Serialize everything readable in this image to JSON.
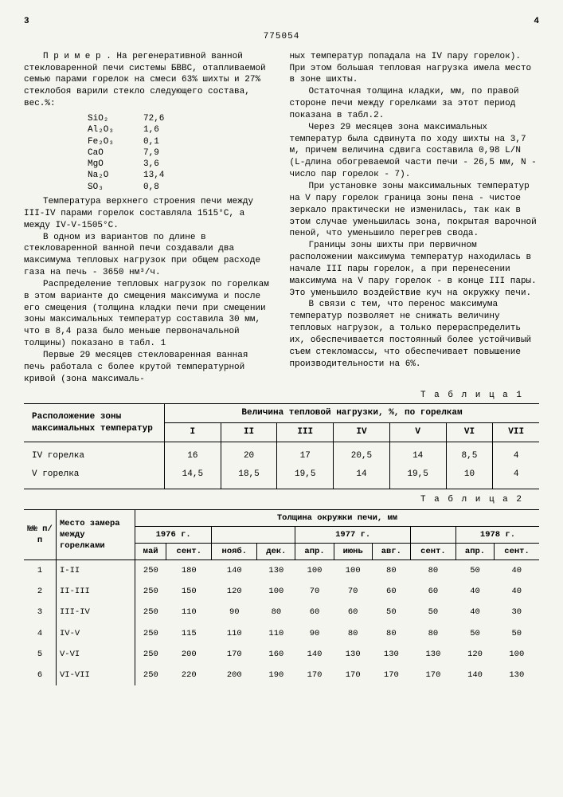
{
  "page_left": "3",
  "page_right": "4",
  "doc_number": "775054",
  "line_markers": [
    "5",
    "10",
    "15",
    "20",
    "25",
    "30"
  ],
  "left_col": {
    "p1": "П р и м е р . На регенеративной ванной стекловаренной печи системы БВВС, отапливаемой семью парами горелок на смеси 63% шихты и 27% стеклобоя варили стекло следующего состава, вес.%:",
    "comp": [
      [
        "SiO₂",
        "72,6"
      ],
      [
        "Al₂O₃",
        "1,6"
      ],
      [
        "Fe₂O₃",
        "0,1"
      ],
      [
        "CaO",
        "7,9"
      ],
      [
        "MgO",
        "3,6"
      ],
      [
        "Na₂O",
        "13,4"
      ],
      [
        "SO₃",
        "0,8"
      ]
    ],
    "p2": "Температура верхнего строения печи между III-IV парами горелок составляла 1515°C, а между IV-V-1505°C.",
    "p3": "В одном из вариантов по длине в стекловаренной ванной печи создавали два максимума тепловых нагрузок при общем расходе газа на печь - 3650 нм³/ч.",
    "p4": "Распределение тепловых нагрузок по горелкам в этом варианте до смещения максимума и после его смещения (толщина кладки печи при смещении зоны максимальных температур составила 30 мм, что в 8,4 раза было меньше первоначальной толщины) показано в табл. 1",
    "p5": "Первые 29 месяцев стекловаренная ванная печь работала с более крутой температурной кривой (зона максималь-"
  },
  "right_col": {
    "p1": "ных температур попадала на IV пару горелок). При этом большая тепловая нагрузка имела место в зоне шихты.",
    "p2": "Остаточная толщина кладки, мм, по правой стороне печи между горелками за этот период показана в табл.2.",
    "p3": "Через 29 месяцев зона максимальных температур была сдвинута по ходу шихты на 3,7 м, причем величина сдвига составила 0,98 L/N (L-длина обогреваемой части печи - 26,5 мм, N - число пар горелок - 7).",
    "p4": "При установке зоны максимальных температур на V пару горелок граница зоны пена - чистое зеркало практически не изменилась, так как в этом случае уменьшилась зона, покрытая варочной пеной, что уменьшило перегрев свода.",
    "p5": "Границы зоны шихты при первичном расположении максимума температур находилась в начале III пары горелок, а при перенесении максимума на V пару горелок - в конце III пары. Это уменьшило воздействие куч на окружку печи.",
    "p6": "В связи с тем, что перенос максимума температур позволяет не снижать величину тепловых нагрузок, а только перераспределить их, обеспечивается постоянный более устойчивый съем стекломассы, что обеспечивает повышение производительности на 6%."
  },
  "table1": {
    "caption": "Т а б л и ц а  1",
    "header_left": "Расположение зоны максимальных температур",
    "header_right": "Величина тепловой нагрузки, %, по горелкам",
    "cols": [
      "I",
      "II",
      "III",
      "IV",
      "V",
      "VI",
      "VII"
    ],
    "rows": [
      {
        "label": "IV горелка",
        "vals": [
          "16",
          "20",
          "17",
          "20,5",
          "14",
          "8,5",
          "4"
        ]
      },
      {
        "label": "V  горелка",
        "vals": [
          "14,5",
          "18,5",
          "19,5",
          "14",
          "19,5",
          "10",
          "4"
        ]
      }
    ]
  },
  "table2": {
    "caption": "Т а б л и ц а  2",
    "h_num": "№№ п/п",
    "h_place": "Место замера между горелками",
    "h_main": "Толщина окружки печи, мм",
    "years": [
      "1976 г.",
      "",
      "1977 г.",
      "",
      "1978 г."
    ],
    "months": [
      "май",
      "сент.",
      "нояб.",
      "дек.",
      "апр.",
      "июнь",
      "авг.",
      "сент.",
      "апр.",
      "сент."
    ],
    "rows": [
      {
        "n": "1",
        "p": "I-II",
        "v": [
          "250",
          "180",
          "140",
          "130",
          "100",
          "100",
          "80",
          "80",
          "50",
          "40"
        ]
      },
      {
        "n": "2",
        "p": "II-III",
        "v": [
          "250",
          "150",
          "120",
          "100",
          "70",
          "70",
          "60",
          "60",
          "40",
          "40"
        ]
      },
      {
        "n": "3",
        "p": "III-IV",
        "v": [
          "250",
          "110",
          "90",
          "80",
          "60",
          "60",
          "50",
          "50",
          "40",
          "30"
        ]
      },
      {
        "n": "4",
        "p": "IV-V",
        "v": [
          "250",
          "115",
          "110",
          "110",
          "90",
          "80",
          "80",
          "80",
          "50",
          "50"
        ]
      },
      {
        "n": "5",
        "p": "V-VI",
        "v": [
          "250",
          "200",
          "170",
          "160",
          "140",
          "130",
          "130",
          "130",
          "120",
          "100"
        ]
      },
      {
        "n": "6",
        "p": "VI-VII",
        "v": [
          "250",
          "220",
          "200",
          "190",
          "170",
          "170",
          "170",
          "170",
          "140",
          "130"
        ]
      }
    ]
  }
}
